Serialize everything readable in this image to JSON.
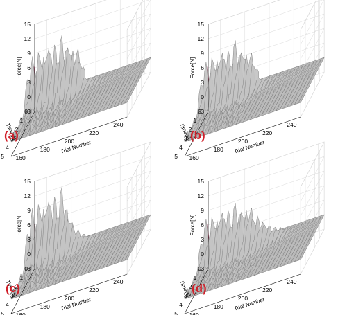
{
  "colors": {
    "surface_fill": "#c4c4c4",
    "surface_stroke": "#7a7a7a",
    "floor_fill": "#bdbdbd",
    "accent_ridge": "#8a2a4a",
    "gridline": "#d9d9d9",
    "panel_label": "#d0202a"
  },
  "chart_data": [
    {
      "type": "surface3d",
      "panel": "(a)",
      "xlabel": "Trial Number",
      "ylabel": "Time[s]",
      "zlabel": "Force[N]",
      "x_ticks": [
        "160",
        "180",
        "200",
        "220",
        "240"
      ],
      "y_ticks": [
        "0",
        "1",
        "2",
        "3",
        "4",
        "5"
      ],
      "z_ticks": [
        "-3",
        "0",
        "3",
        "6",
        "9",
        "12",
        "15"
      ],
      "xlim": [
        150,
        245
      ],
      "ylim": [
        0,
        5
      ],
      "zlim": [
        -3,
        15
      ],
      "grid": true,
      "x": [
        150,
        153,
        156,
        159,
        162,
        165,
        168,
        171,
        174,
        177,
        180,
        183,
        186,
        189,
        192,
        195,
        198,
        201,
        204,
        207,
        210,
        213,
        216,
        219,
        222,
        225,
        228,
        231,
        234,
        237,
        240,
        243
      ],
      "peak_force": [
        6.5,
        9.0,
        7.2,
        10.5,
        8.0,
        11.0,
        9.5,
        10.0,
        8.5,
        11.5,
        9.0,
        10.0,
        7.5,
        8.5,
        6.0,
        2.0,
        1.5,
        1.2,
        1.0,
        1.0,
        0.8,
        0.8,
        0.7,
        0.7,
        0.6,
        0.6,
        0.6,
        0.5,
        0.5,
        0.5,
        0.5,
        0.5
      ]
    },
    {
      "type": "surface3d",
      "panel": "(b)",
      "xlabel": "Trial Number",
      "ylabel": "Time[s]",
      "zlabel": "Force[N]",
      "x_ticks": [
        "160",
        "180",
        "200",
        "220",
        "240"
      ],
      "y_ticks": [
        "0",
        "1",
        "2",
        "3",
        "4",
        "5"
      ],
      "z_ticks": [
        "-3",
        "0",
        "3",
        "6",
        "9",
        "12",
        "15"
      ],
      "xlim": [
        150,
        245
      ],
      "ylim": [
        0,
        5
      ],
      "zlim": [
        -3,
        15
      ],
      "grid": true,
      "x": [
        150,
        153,
        156,
        159,
        162,
        165,
        168,
        171,
        174,
        177,
        180,
        183,
        186,
        189,
        192,
        195,
        198,
        201,
        204,
        207,
        210,
        213,
        216,
        219,
        222,
        225,
        228,
        231,
        234,
        237,
        240,
        243
      ],
      "peak_force": [
        5.5,
        8.0,
        6.5,
        9.5,
        7.5,
        10.0,
        8.5,
        9.0,
        7.8,
        10.5,
        8.0,
        9.0,
        6.8,
        7.5,
        5.5,
        2.0,
        1.5,
        1.2,
        1.0,
        0.9,
        0.8,
        0.8,
        0.7,
        0.7,
        0.6,
        0.6,
        0.6,
        0.5,
        0.5,
        0.5,
        0.5,
        0.5
      ]
    },
    {
      "type": "surface3d",
      "panel": "(c)",
      "xlabel": "Trial Number",
      "ylabel": "Time[s]",
      "zlabel": "Force[N]",
      "x_ticks": [
        "160",
        "180",
        "200",
        "220",
        "240"
      ],
      "y_ticks": [
        "0",
        "1",
        "2",
        "3",
        "4",
        "5"
      ],
      "z_ticks": [
        "-3",
        "0",
        "3",
        "6",
        "9",
        "12",
        "15"
      ],
      "xlim": [
        150,
        245
      ],
      "ylim": [
        0,
        5
      ],
      "zlim": [
        -3,
        15
      ],
      "grid": true,
      "x": [
        150,
        153,
        156,
        159,
        162,
        165,
        168,
        171,
        174,
        177,
        180,
        183,
        186,
        189,
        192,
        195,
        198,
        201,
        204,
        207,
        210,
        213,
        216,
        219,
        222,
        225,
        228,
        231,
        234,
        237,
        240,
        243
      ],
      "peak_force": [
        7.0,
        10.0,
        8.0,
        11.5,
        9.0,
        12.0,
        10.5,
        11.0,
        9.0,
        12.5,
        8.5,
        7.0,
        4.5,
        3.5,
        2.5,
        1.8,
        1.4,
        1.2,
        1.0,
        0.9,
        0.8,
        0.8,
        0.7,
        0.7,
        0.6,
        0.6,
        0.6,
        0.5,
        0.5,
        0.5,
        0.5,
        0.5
      ]
    },
    {
      "type": "surface3d",
      "panel": "(d)",
      "xlabel": "Trial Number",
      "ylabel": "Time[s]",
      "zlabel": "Force[N]",
      "x_ticks": [
        "160",
        "180",
        "200",
        "220",
        "240"
      ],
      "y_ticks": [
        "0",
        "1",
        "2",
        "3",
        "4",
        "5"
      ],
      "z_ticks": [
        "-3",
        "0",
        "3",
        "6",
        "9",
        "12",
        "15"
      ],
      "xlim": [
        150,
        245
      ],
      "ylim": [
        0,
        5
      ],
      "zlim": [
        -3,
        15
      ],
      "grid": true,
      "x": [
        150,
        153,
        156,
        159,
        162,
        165,
        168,
        171,
        174,
        177,
        180,
        183,
        186,
        189,
        192,
        195,
        198,
        201,
        204,
        207,
        210,
        213,
        216,
        219,
        222,
        225,
        228,
        231,
        234,
        237,
        240,
        243
      ],
      "peak_force": [
        5.0,
        8.0,
        6.0,
        9.0,
        7.0,
        9.5,
        8.0,
        8.5,
        7.0,
        9.5,
        7.5,
        8.5,
        7.0,
        8.0,
        6.0,
        5.5,
        4.5,
        3.8,
        3.0,
        2.5,
        2.0,
        1.5,
        1.2,
        1.0,
        0.8,
        0.7,
        0.6,
        0.6,
        0.5,
        0.5,
        0.5,
        0.5
      ]
    }
  ]
}
